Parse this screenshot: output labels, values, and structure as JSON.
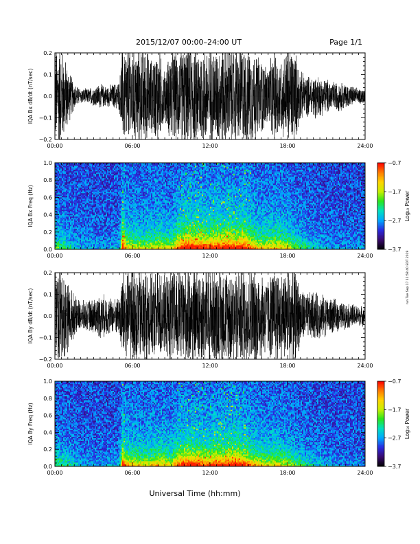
{
  "header": {
    "date_range": "2015/12/07  00:00–24:00 UT",
    "page": "Page 1/1"
  },
  "side_note": "run Tue Sep 17 11:58:40 EDT 2019",
  "xlabel": "Universal Time (hh:mm)",
  "colors": {
    "background": "#ffffff",
    "ink": "#000000",
    "colormap": [
      "#000000",
      "#3a0a6e",
      "#2a2adf",
      "#00a8ff",
      "#00e0c0",
      "#29e61d",
      "#c8f000",
      "#ffd400",
      "#ff7a00",
      "#ff0000"
    ]
  },
  "chart_data": [
    {
      "type": "line",
      "ylabel": "IQA Bx dB/dt (nT/sec)",
      "x_ticks": [
        "00:00",
        "06:00",
        "12:00",
        "18:00",
        "24:00"
      ],
      "xlim_hours": [
        0,
        24
      ],
      "ylim": [
        -0.2,
        0.2
      ],
      "y_ticks": [
        "−0.2",
        "−0.1",
        "0.0",
        "0.1",
        "0.2"
      ],
      "series": [
        {
          "x_hours": [
            0,
            0.5,
            1,
            1.5,
            2,
            2.5,
            3,
            3.5,
            4,
            4.5,
            5,
            5.2,
            5.5,
            6,
            6.5,
            7,
            7.5,
            8,
            8.5,
            9,
            9.5,
            10,
            10.5,
            11,
            11.5,
            12,
            12.5,
            13,
            13.5,
            14,
            14.5,
            15,
            15.5,
            16,
            16.5,
            17,
            17.5,
            18,
            18.5,
            19,
            19.5,
            20,
            20.5,
            21,
            21.5,
            22,
            22.5,
            23,
            23.5,
            24
          ],
          "amplitude": [
            0.2,
            0.2,
            0.12,
            0.05,
            0.03,
            0.03,
            0.04,
            0.05,
            0.04,
            0.05,
            0.06,
            0.2,
            0.2,
            0.2,
            0.2,
            0.2,
            0.15,
            0.2,
            0.1,
            0.2,
            0.18,
            0.2,
            0.2,
            0.2,
            0.2,
            0.2,
            0.2,
            0.2,
            0.2,
            0.2,
            0.2,
            0.2,
            0.18,
            0.15,
            0.12,
            0.18,
            0.15,
            0.2,
            0.2,
            0.1,
            0.08,
            0.09,
            0.08,
            0.07,
            0.06,
            0.06,
            0.05,
            0.04,
            0.03,
            0.03
          ]
        }
      ]
    },
    {
      "type": "heatmap",
      "ylabel": "IQA Bx Freq (Hz)",
      "x_ticks": [
        "00:00",
        "06:00",
        "12:00",
        "18:00",
        "24:00"
      ],
      "xlim_hours": [
        0,
        24
      ],
      "ylim": [
        0,
        1.0
      ],
      "y_ticks": [
        "0.0",
        "0.2",
        "0.4",
        "0.6",
        "0.8",
        "1.0"
      ],
      "colorbar": {
        "label": "Log₁₀ Power",
        "range": [
          -3.7,
          -0.7
        ],
        "ticks": [
          "−0.7",
          "−1.7",
          "−2.7",
          "−3.7"
        ]
      },
      "activity_hours": [
        0,
        1,
        2,
        3,
        4,
        5,
        5.25,
        5.5,
        6,
        7,
        8,
        9,
        9.5,
        10,
        10.5,
        11,
        11.5,
        12,
        12.5,
        13,
        13.5,
        14,
        14.5,
        15,
        15.5,
        16,
        16.5,
        17,
        18,
        19,
        20,
        21,
        22,
        23,
        24
      ],
      "activity_level": [
        0.35,
        0.25,
        0.15,
        0.12,
        0.12,
        0.15,
        0.9,
        0.55,
        0.5,
        0.45,
        0.55,
        0.45,
        0.7,
        0.85,
        0.9,
        0.85,
        0.8,
        0.8,
        0.85,
        0.85,
        0.9,
        0.8,
        0.9,
        0.75,
        0.6,
        0.55,
        0.55,
        0.6,
        0.5,
        0.3,
        0.2,
        0.15,
        0.1,
        0.1,
        0.1
      ]
    },
    {
      "type": "line",
      "ylabel": "IQA By dB/dt (nT/sec)",
      "x_ticks": [
        "00:00",
        "06:00",
        "12:00",
        "18:00",
        "24:00"
      ],
      "xlim_hours": [
        0,
        24
      ],
      "ylim": [
        -0.2,
        0.2
      ],
      "y_ticks": [
        "−0.2",
        "−0.1",
        "0.0",
        "0.1",
        "0.2"
      ],
      "series": [
        {
          "x_hours": [
            0,
            0.5,
            1,
            1.5,
            2,
            2.5,
            3,
            3.5,
            4,
            4.5,
            5,
            5.2,
            5.5,
            6,
            6.5,
            7,
            7.5,
            8,
            8.5,
            9,
            9.5,
            10,
            10.5,
            11,
            11.5,
            12,
            12.5,
            13,
            13.5,
            14,
            14.5,
            15,
            15.5,
            16,
            16.5,
            17,
            17.5,
            18,
            18.5,
            19,
            19.5,
            20,
            20.5,
            21,
            21.5,
            22,
            22.5,
            23,
            23.5,
            24
          ],
          "amplitude": [
            0.2,
            0.2,
            0.14,
            0.08,
            0.06,
            0.06,
            0.07,
            0.09,
            0.08,
            0.07,
            0.08,
            0.2,
            0.2,
            0.2,
            0.2,
            0.2,
            0.16,
            0.2,
            0.15,
            0.2,
            0.2,
            0.2,
            0.2,
            0.2,
            0.2,
            0.2,
            0.2,
            0.2,
            0.2,
            0.2,
            0.2,
            0.2,
            0.2,
            0.18,
            0.16,
            0.2,
            0.18,
            0.2,
            0.2,
            0.12,
            0.09,
            0.1,
            0.09,
            0.08,
            0.07,
            0.06,
            0.05,
            0.05,
            0.04,
            0.04
          ]
        }
      ]
    },
    {
      "type": "heatmap",
      "ylabel": "IQA By Freq (Hz)",
      "x_ticks": [
        "00:00",
        "06:00",
        "12:00",
        "18:00",
        "24:00"
      ],
      "xlim_hours": [
        0,
        24
      ],
      "ylim": [
        0,
        1.0
      ],
      "y_ticks": [
        "0.0",
        "0.2",
        "0.4",
        "0.6",
        "0.8",
        "1.0"
      ],
      "colorbar": {
        "label": "Log₁₀ Power",
        "range": [
          -3.7,
          -0.7
        ],
        "ticks": [
          "−0.7",
          "−1.7",
          "−2.7",
          "−3.7"
        ]
      },
      "activity_hours": [
        0,
        1,
        2,
        3,
        4,
        5,
        5.25,
        5.5,
        6,
        7,
        8,
        9,
        9.5,
        10,
        10.5,
        11,
        11.5,
        12,
        12.5,
        13,
        13.5,
        14,
        14.5,
        15,
        15.5,
        16,
        16.5,
        17,
        18,
        19,
        20,
        21,
        22,
        23,
        24
      ],
      "activity_level": [
        0.35,
        0.25,
        0.15,
        0.12,
        0.12,
        0.15,
        0.9,
        0.6,
        0.55,
        0.5,
        0.6,
        0.5,
        0.75,
        0.8,
        0.85,
        0.8,
        0.75,
        0.75,
        0.8,
        0.8,
        0.85,
        0.85,
        0.8,
        0.7,
        0.6,
        0.55,
        0.5,
        0.55,
        0.45,
        0.3,
        0.2,
        0.15,
        0.1,
        0.1,
        0.1
      ]
    }
  ]
}
